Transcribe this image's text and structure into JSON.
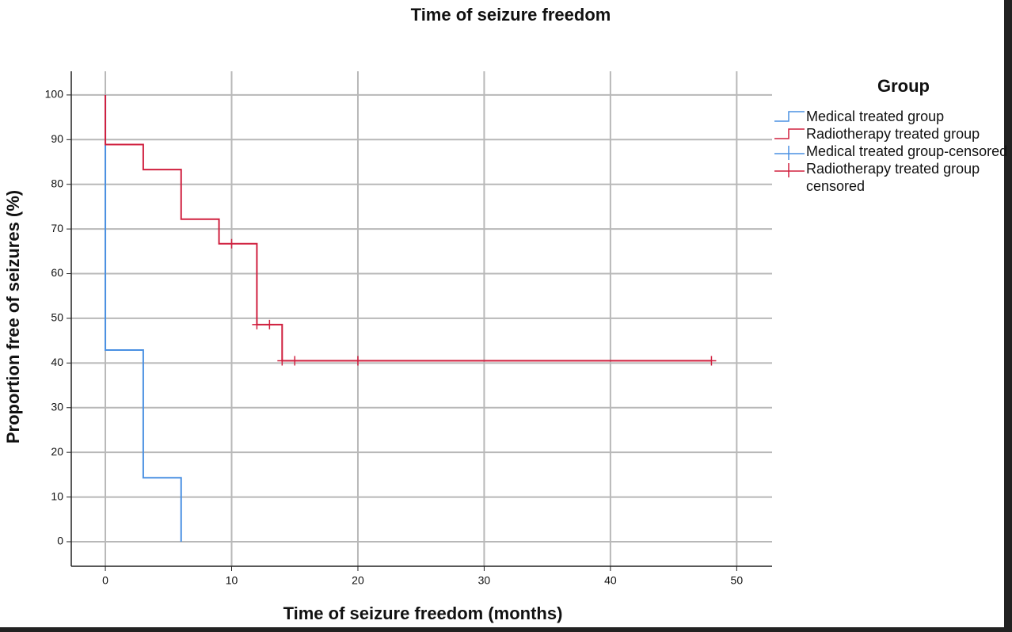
{
  "chart_data": {
    "type": "km",
    "title": "Time of seizure freedom",
    "x_label": "Time of seizure freedom (months)",
    "y_label": "Proportion free of seizures (%)",
    "legend_title": "Group",
    "legend": "right",
    "grid": true,
    "xlim": [
      -2.7,
      52.8
    ],
    "ylim": [
      -5.5,
      105.3
    ],
    "xticks": [
      0,
      10,
      20,
      30,
      40,
      50
    ],
    "yticks": [
      0,
      10,
      20,
      30,
      40,
      50,
      60,
      70,
      80,
      90,
      100
    ],
    "series": [
      {
        "name": "Medical treated group",
        "color": "#4a90e2",
        "censored": false,
        "x": [
          0,
          0,
          3,
          3,
          6,
          6
        ],
        "values": [
          100,
          42.9,
          42.9,
          14.3,
          14.3,
          0
        ]
      },
      {
        "name": "Radiotherapy treated group",
        "color": "#d0203f",
        "censored": false,
        "x": [
          0,
          0,
          3,
          3,
          6,
          6,
          9,
          9,
          12,
          12,
          14,
          14,
          48
        ],
        "values": [
          100,
          88.9,
          88.9,
          83.3,
          83.3,
          72.2,
          72.2,
          66.7,
          66.7,
          48.6,
          48.6,
          40.5,
          40.5
        ]
      },
      {
        "name": "Medical treated group-censored",
        "color": "#4a90e2",
        "censored": true,
        "x": [],
        "values": []
      },
      {
        "name": "Radiotherapy treated group censored",
        "color": "#d0203f",
        "censored": true,
        "x": [
          10,
          12,
          13,
          14,
          15,
          20,
          48
        ],
        "values": [
          66.7,
          48.6,
          48.6,
          40.5,
          40.5,
          40.5,
          40.5
        ]
      }
    ]
  }
}
